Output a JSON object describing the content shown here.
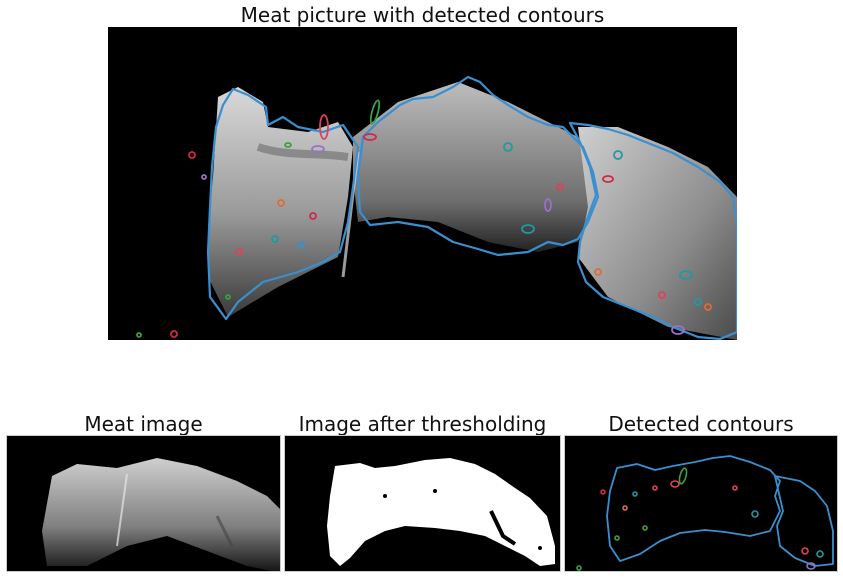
{
  "figure": {
    "main_title": "Meat picture with detected contours",
    "subplots": [
      {
        "title": "Meat image"
      },
      {
        "title": "Image after thresholding"
      },
      {
        "title": "Detected contours"
      }
    ]
  },
  "colors": {
    "background": "#000000",
    "outer_contour": "#3a8fd0",
    "small_contours": [
      "#e0405a",
      "#d02848",
      "#3aa040",
      "#9a70c8",
      "#1f9aa0",
      "#e06a3a"
    ],
    "threshold_mask": "#ffffff"
  }
}
